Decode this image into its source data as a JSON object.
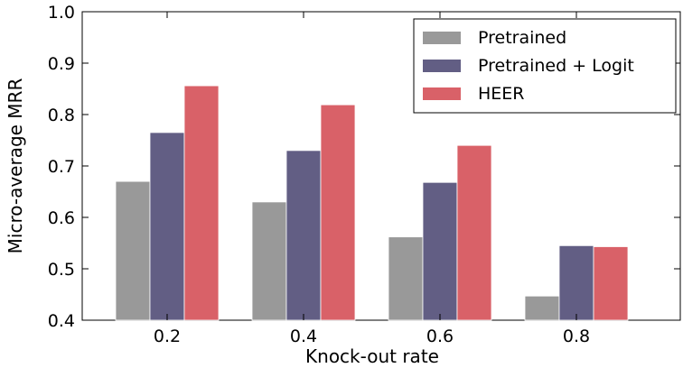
{
  "chart_data": {
    "type": "bar",
    "title": "",
    "xlabel": "Knock-out rate",
    "ylabel": "Micro-average MRR",
    "categories": [
      "0.2",
      "0.4",
      "0.6",
      "0.8"
    ],
    "ylim": [
      0.4,
      1.0
    ],
    "yticks": [
      "0.4",
      "0.5",
      "0.6",
      "0.7",
      "0.8",
      "0.9",
      "1.0"
    ],
    "grid": false,
    "legend_position": "top-right",
    "series": [
      {
        "name": "Pretrained",
        "color": "#999999",
        "values": [
          0.67,
          0.63,
          0.562,
          0.447
        ]
      },
      {
        "name": "Pretrained + Logit",
        "color": "#625e84",
        "values": [
          0.765,
          0.73,
          0.668,
          0.545
        ]
      },
      {
        "name": "HEER",
        "color": "#d96168",
        "values": [
          0.856,
          0.819,
          0.74,
          0.543
        ]
      }
    ]
  }
}
